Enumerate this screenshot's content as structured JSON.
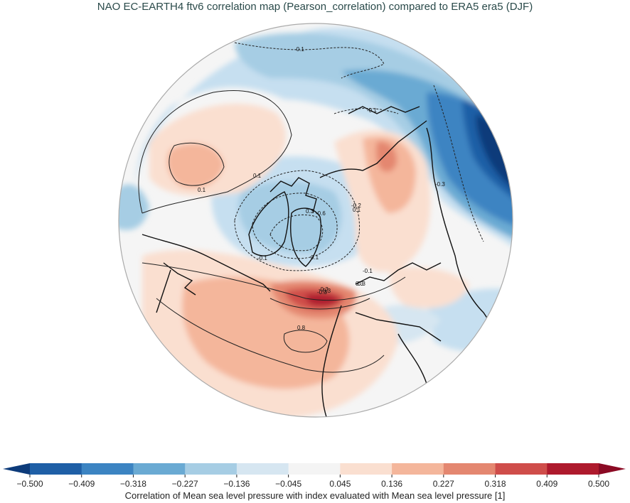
{
  "title": "NAO EC-EARTH4 ftv6 correlation map (Pearson_correlation) compared to ERA5 era5 (DJF)",
  "colorbar": {
    "label": "Correlation of Mean sea level pressure with index evaluated with Mean sea level pressure [1]",
    "ticks": [
      "−0.500",
      "−0.409",
      "−0.318",
      "−0.227",
      "−0.136",
      "−0.045",
      "0.045",
      "0.136",
      "0.227",
      "0.318",
      "0.409",
      "0.500"
    ],
    "colors": [
      "#1f5fa6",
      "#3c84c2",
      "#6aaad3",
      "#a6cde4",
      "#d6e6f1",
      "#f4f4f4",
      "#fadfd0",
      "#f4b69b",
      "#e48770",
      "#cf4d4a",
      "#ae1a2d"
    ],
    "extend_low": "#0d3b7a",
    "extend_high": "#8b0a24"
  },
  "contour_labels": [
    "-0.1",
    "-0.1",
    "0.1",
    "0.1",
    "0.1",
    "-0.6",
    "-0.2",
    "-0.3",
    "-0.1",
    "-0.3",
    "-0.1",
    "-0.3",
    "0.3",
    "0.1",
    "0.3",
    "0.8",
    "-0.3",
    "0.3"
  ]
}
